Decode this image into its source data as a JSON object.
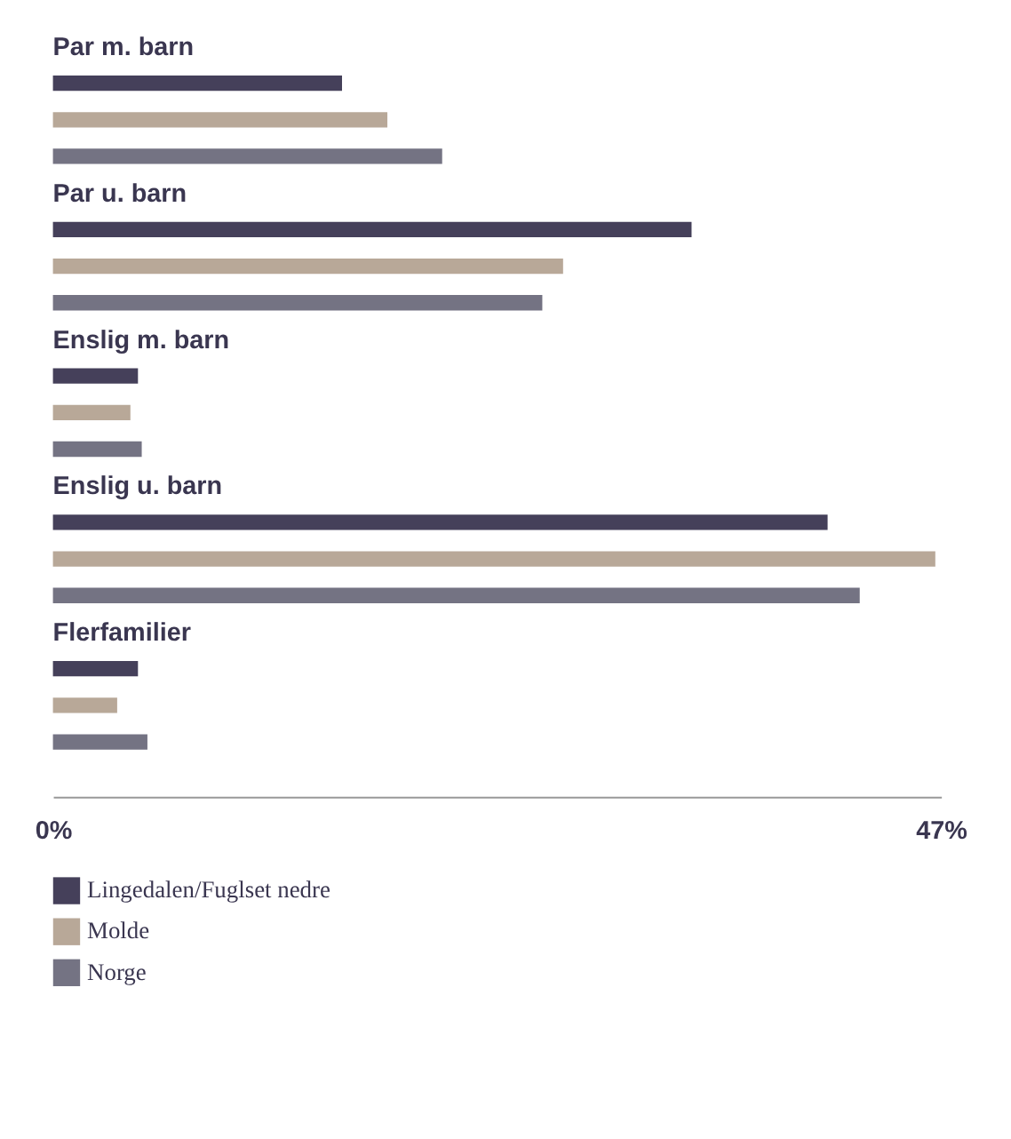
{
  "chart_data": {
    "type": "bar",
    "orientation": "horizontal",
    "categories": [
      "Par m. barn",
      "Par u. barn",
      "Enslig m. barn",
      "Enslig u. barn",
      "Flerfamilier"
    ],
    "series": [
      {
        "name": "Lingedalen/Fuglset nedre",
        "color": "#45405a",
        "values": [
          15.3,
          33.8,
          4.5,
          41.0,
          4.5
        ]
      },
      {
        "name": "Molde",
        "color": "#b8a898",
        "values": [
          17.7,
          27.0,
          4.1,
          46.7,
          3.4
        ]
      },
      {
        "name": "Norge",
        "color": "#747383",
        "values": [
          20.6,
          25.9,
          4.7,
          42.7,
          5.0
        ]
      }
    ],
    "xlim": [
      0,
      47
    ],
    "xticks": [
      {
        "value": 0,
        "label": "0%"
      },
      {
        "value": 47,
        "label": "47%"
      }
    ],
    "legend": "bottom left"
  }
}
